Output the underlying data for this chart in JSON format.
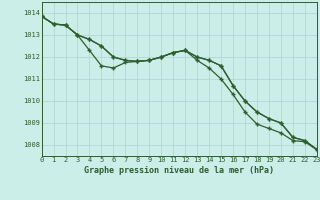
{
  "title": "Graphe pression niveau de la mer (hPa)",
  "background_color": "#cceee8",
  "grid_color": "#aad4ce",
  "line_color": "#2d5e2d",
  "x_min": 0,
  "x_max": 23,
  "y_min": 1007.5,
  "y_max": 1014.5,
  "y_ticks": [
    1008,
    1009,
    1010,
    1011,
    1012,
    1013,
    1014
  ],
  "line1": [
    1013.85,
    1013.5,
    1013.45,
    1013.0,
    1012.8,
    1012.5,
    1012.0,
    1011.85,
    1011.8,
    1011.85,
    1012.0,
    1012.2,
    1012.3,
    1012.0,
    1011.85,
    1011.6,
    1010.7,
    1010.0,
    1009.5,
    1009.2,
    1009.0,
    1008.35,
    1008.2,
    1007.8
  ],
  "line2": [
    1013.85,
    1013.5,
    1013.45,
    1013.0,
    1012.3,
    1011.6,
    1011.5,
    1011.75,
    1011.8,
    1011.85,
    1012.0,
    1012.2,
    1012.3,
    1012.0,
    1011.85,
    1011.6,
    1010.7,
    1010.0,
    1009.5,
    1009.2,
    1009.0,
    1008.35,
    1008.2,
    1007.8
  ],
  "line3": [
    1013.85,
    1013.5,
    1013.45,
    1013.0,
    1012.8,
    1012.5,
    1012.0,
    1011.85,
    1011.8,
    1011.85,
    1012.0,
    1012.2,
    1012.3,
    1011.85,
    1011.5,
    1011.0,
    1010.3,
    1009.5,
    1008.95,
    1008.75,
    1008.55,
    1008.2,
    1008.15,
    1007.78
  ]
}
